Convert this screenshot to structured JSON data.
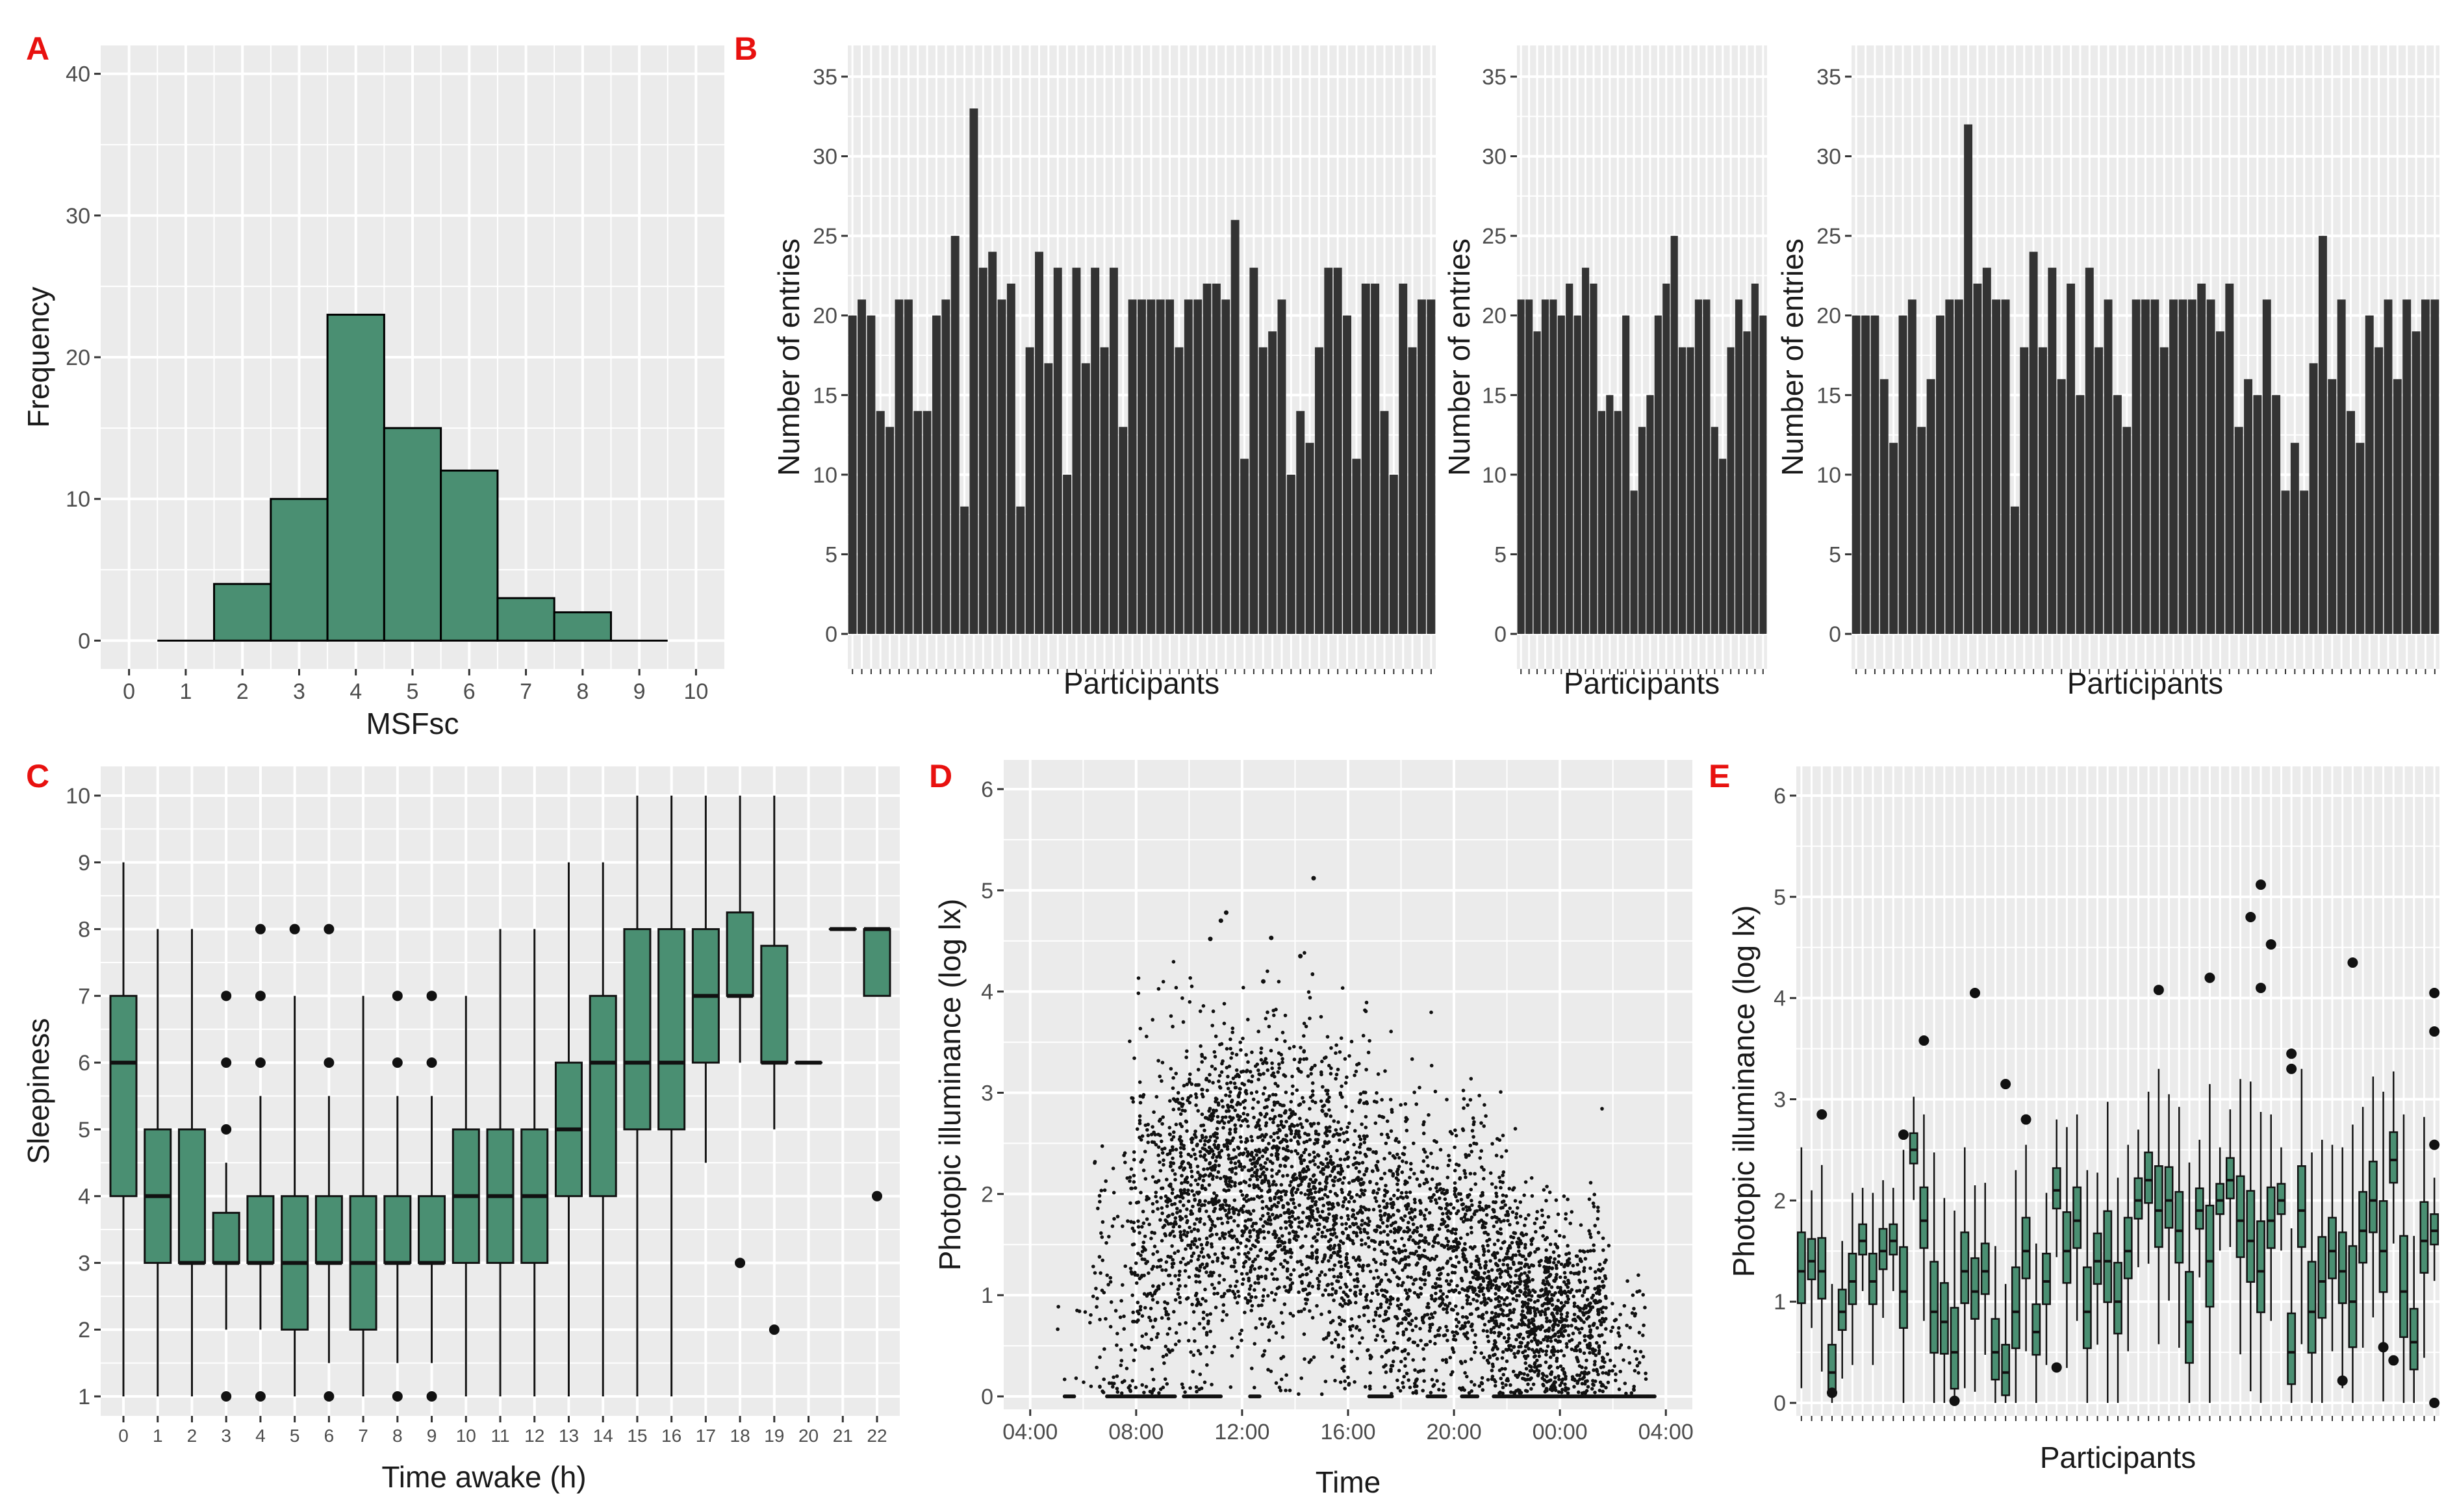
{
  "chart_data": [
    {
      "panel": "A",
      "type": "bar",
      "panel_label": "A",
      "xlabel": "MSFsc",
      "ylabel": "Frequency",
      "xticks": [
        "0",
        "1",
        "2",
        "3",
        "4",
        "5",
        "6",
        "7",
        "8",
        "9",
        "10"
      ],
      "yticks": [
        "0",
        "10",
        "20",
        "30",
        "40"
      ],
      "xlim": [
        -0.5,
        10.5
      ],
      "ylim": [
        -2,
        42
      ],
      "bin_centers": [
        1,
        2,
        3,
        4,
        5,
        6,
        7,
        8,
        9
      ],
      "values": [
        0,
        4,
        10,
        23,
        15,
        12,
        3,
        2,
        0
      ],
      "fill": "#4a8f72"
    },
    {
      "panel": "B",
      "type": "bar",
      "panel_label": "B",
      "fill": "#333333",
      "subplots": [
        {
          "xlabel": "Participants",
          "ylabel": "Number of entries",
          "yticks": [
            "0",
            "5",
            "10",
            "15",
            "20",
            "25",
            "30",
            "35"
          ],
          "ylim": [
            0,
            36.5
          ],
          "values": [
            20,
            21,
            20,
            14,
            13,
            21,
            21,
            14,
            14,
            20,
            21,
            25,
            8,
            33,
            23,
            24,
            21,
            22,
            8,
            18,
            24,
            17,
            23,
            10,
            23,
            17,
            23,
            18,
            23,
            13,
            21,
            21,
            21,
            21,
            21,
            18,
            21,
            21,
            22,
            22,
            21,
            26,
            11,
            23,
            18,
            19,
            21,
            10,
            14,
            12,
            18,
            23,
            23,
            20,
            11,
            22,
            22,
            14,
            10,
            22,
            18,
            21,
            21
          ]
        },
        {
          "xlabel": "Participants",
          "ylabel": "Number of entries",
          "yticks": [
            "0",
            "5",
            "10",
            "15",
            "20",
            "25",
            "30",
            "35"
          ],
          "ylim": [
            0,
            36.5
          ],
          "values": [
            21,
            21,
            19,
            21,
            21,
            20,
            22,
            20,
            23,
            22,
            14,
            15,
            14,
            20,
            9,
            13,
            15,
            20,
            22,
            25,
            18,
            18,
            21,
            21,
            13,
            11,
            18,
            21,
            19,
            22,
            20
          ]
        },
        {
          "xlabel": "Participants",
          "ylabel": "Number of entries",
          "yticks": [
            "0",
            "5",
            "10",
            "15",
            "20",
            "25",
            "30",
            "35"
          ],
          "ylim": [
            0,
            36.5
          ],
          "values": [
            20,
            20,
            20,
            16,
            12,
            20,
            21,
            13,
            16,
            20,
            21,
            21,
            32,
            22,
            23,
            21,
            21,
            8,
            18,
            24,
            18,
            23,
            16,
            22,
            15,
            23,
            18,
            21,
            15,
            13,
            21,
            21,
            21,
            18,
            21,
            21,
            21,
            22,
            21,
            19,
            22,
            13,
            16,
            15,
            21,
            15,
            9,
            12,
            9,
            17,
            25,
            16,
            21,
            14,
            12,
            20,
            18,
            21,
            16,
            21,
            19,
            21,
            21
          ]
        }
      ]
    },
    {
      "panel": "C",
      "type": "box",
      "panel_label": "C",
      "xlabel": "Time awake (h)",
      "ylabel": "Sleepiness",
      "xticks": [
        "0",
        "1",
        "2",
        "3",
        "4",
        "5",
        "6",
        "7",
        "8",
        "9",
        "10",
        "11",
        "12",
        "13",
        "14",
        "15",
        "16",
        "17",
        "18",
        "19",
        "20",
        "21",
        "22"
      ],
      "yticks": [
        "1",
        "2",
        "3",
        "4",
        "5",
        "6",
        "7",
        "8",
        "9",
        "10"
      ],
      "ylim": [
        0.6,
        10.4
      ],
      "fill": "#4a8f72",
      "boxes": [
        {
          "x": 0,
          "q1": 4,
          "med": 6,
          "q3": 7,
          "lo": 1,
          "hi": 9,
          "out": []
        },
        {
          "x": 1,
          "q1": 3,
          "med": 4,
          "q3": 5,
          "lo": 1,
          "hi": 8,
          "out": []
        },
        {
          "x": 2,
          "q1": 3,
          "med": 3,
          "q3": 5,
          "lo": 1,
          "hi": 8,
          "out": []
        },
        {
          "x": 3,
          "q1": 3,
          "med": 3,
          "q3": 3.75,
          "lo": 2,
          "hi": 4.5,
          "out": [
            1,
            5,
            6,
            7
          ]
        },
        {
          "x": 4,
          "q1": 3,
          "med": 3,
          "q3": 4,
          "lo": 2,
          "hi": 5.5,
          "out": [
            1,
            6,
            7,
            8
          ]
        },
        {
          "x": 5,
          "q1": 2,
          "med": 3,
          "q3": 4,
          "lo": 1,
          "hi": 7,
          "out": [
            8
          ]
        },
        {
          "x": 6,
          "q1": 3,
          "med": 3,
          "q3": 4,
          "lo": 1.5,
          "hi": 5.5,
          "out": [
            1,
            6,
            8
          ]
        },
        {
          "x": 7,
          "q1": 2,
          "med": 3,
          "q3": 4,
          "lo": 1,
          "hi": 7,
          "out": []
        },
        {
          "x": 8,
          "q1": 3,
          "med": 3,
          "q3": 4,
          "lo": 1.5,
          "hi": 5.5,
          "out": [
            1,
            6,
            7
          ]
        },
        {
          "x": 9,
          "q1": 3,
          "med": 3,
          "q3": 4,
          "lo": 1.5,
          "hi": 5.5,
          "out": [
            1,
            6,
            7
          ]
        },
        {
          "x": 10,
          "q1": 3,
          "med": 4,
          "q3": 5,
          "lo": 1,
          "hi": 7,
          "out": []
        },
        {
          "x": 11,
          "q1": 3,
          "med": 4,
          "q3": 5,
          "lo": 1,
          "hi": 8,
          "out": []
        },
        {
          "x": 12,
          "q1": 3,
          "med": 4,
          "q3": 5,
          "lo": 1,
          "hi": 8,
          "out": []
        },
        {
          "x": 13,
          "q1": 4,
          "med": 5,
          "q3": 6,
          "lo": 1,
          "hi": 9,
          "out": []
        },
        {
          "x": 14,
          "q1": 4,
          "med": 6,
          "q3": 7,
          "lo": 1,
          "hi": 9,
          "out": []
        },
        {
          "x": 15,
          "q1": 5,
          "med": 6,
          "q3": 8,
          "lo": 1,
          "hi": 10,
          "out": []
        },
        {
          "x": 16,
          "q1": 5,
          "med": 6,
          "q3": 8,
          "lo": 1,
          "hi": 10,
          "out": []
        },
        {
          "x": 17,
          "q1": 6,
          "med": 7,
          "q3": 8,
          "lo": 4.5,
          "hi": 10,
          "out": []
        },
        {
          "x": 18,
          "q1": 7,
          "med": 7,
          "q3": 8.25,
          "lo": 6,
          "hi": 10,
          "out": [
            3
          ]
        },
        {
          "x": 19,
          "q1": 6,
          "med": 6,
          "q3": 7.75,
          "lo": 5,
          "hi": 10,
          "out": [
            2
          ]
        },
        {
          "x": 20,
          "q1": 6,
          "med": 6,
          "q3": 6,
          "lo": 6,
          "hi": 6,
          "out": []
        },
        {
          "x": 21,
          "q1": 8,
          "med": 8,
          "q3": 8,
          "lo": 8,
          "hi": 8,
          "out": []
        },
        {
          "x": 22,
          "q1": 7,
          "med": 8,
          "q3": 8,
          "lo": 7,
          "hi": 8,
          "out": [
            4
          ]
        }
      ]
    },
    {
      "panel": "D",
      "type": "scatter",
      "panel_label": "D",
      "xlabel": "Time",
      "ylabel": "Photopic illuminance (log lx)",
      "xticks": [
        "04:00",
        "08:00",
        "12:00",
        "16:00",
        "20:00",
        "00:00",
        "04:00"
      ],
      "x_tick_hours": [
        4,
        8,
        12,
        16,
        20,
        24,
        28
      ],
      "xlim": [
        3,
        29
      ],
      "yticks": [
        "0",
        "1",
        "2",
        "3",
        "4",
        "5",
        "6"
      ],
      "ylim": [
        -0.3,
        6.2
      ],
      "density_profile": [
        {
          "hour": 5.5,
          "mean": 0.6,
          "sd": 0.6,
          "n": 8
        },
        {
          "hour": 7,
          "mean": 1.0,
          "sd": 0.9,
          "n": 80
        },
        {
          "hour": 8.5,
          "mean": 1.6,
          "sd": 0.9,
          "n": 250
        },
        {
          "hour": 10,
          "mean": 1.9,
          "sd": 0.8,
          "n": 380
        },
        {
          "hour": 11.5,
          "mean": 2.1,
          "sd": 0.8,
          "n": 420
        },
        {
          "hour": 13,
          "mean": 2.0,
          "sd": 0.8,
          "n": 430
        },
        {
          "hour": 14.5,
          "mean": 2.0,
          "sd": 0.8,
          "n": 400
        },
        {
          "hour": 16,
          "mean": 1.8,
          "sd": 0.8,
          "n": 380
        },
        {
          "hour": 17.5,
          "mean": 1.5,
          "sd": 0.8,
          "n": 330
        },
        {
          "hour": 19,
          "mean": 1.3,
          "sd": 0.7,
          "n": 300
        },
        {
          "hour": 20.5,
          "mean": 1.4,
          "sd": 0.7,
          "n": 330
        },
        {
          "hour": 22,
          "mean": 1.1,
          "sd": 0.6,
          "n": 380
        },
        {
          "hour": 23.5,
          "mean": 0.8,
          "sd": 0.5,
          "n": 420
        },
        {
          "hour": 25,
          "mean": 0.7,
          "sd": 0.5,
          "n": 280
        },
        {
          "hour": 26.5,
          "mean": 0.5,
          "sd": 0.4,
          "n": 60
        }
      ],
      "notable_points": [
        {
          "hour": 14.7,
          "y": 5.12
        },
        {
          "hour": 11.4,
          "y": 4.78
        },
        {
          "hour": 11.2,
          "y": 4.7
        },
        {
          "hour": 10.8,
          "y": 4.52
        },
        {
          "hour": 13.1,
          "y": 4.53
        },
        {
          "hour": 14.2,
          "y": 4.35
        },
        {
          "hour": 12.8,
          "y": 4.1
        }
      ],
      "zero_runs": [
        {
          "from": 5.3,
          "to": 5.7
        },
        {
          "from": 6.9,
          "to": 9.5
        },
        {
          "from": 9.8,
          "to": 11.2
        },
        {
          "from": 12.3,
          "to": 12.7
        },
        {
          "from": 16.8,
          "to": 17.7
        },
        {
          "from": 19.0,
          "to": 19.7
        },
        {
          "from": 20.3,
          "to": 20.9
        },
        {
          "from": 21.5,
          "to": 27.6
        }
      ],
      "point_color": "#111111"
    },
    {
      "panel": "E",
      "type": "box",
      "panel_label": "E",
      "xlabel": "Participants",
      "ylabel": "Photopic illuminance (log lx)",
      "yticks": [
        "0",
        "1",
        "2",
        "3",
        "4",
        "5",
        "6"
      ],
      "ylim": [
        -0.2,
        6.3
      ],
      "fill": "#4a8f72",
      "participant_count": 63,
      "medians": [
        1.3,
        1.4,
        1.3,
        0.3,
        0.9,
        1.2,
        1.6,
        1.2,
        1.5,
        1.6,
        1.1,
        2.5,
        1.8,
        0.9,
        0.8,
        0.5,
        1.3,
        1.1,
        1.3,
        0.5,
        0.3,
        0.9,
        1.5,
        0.7,
        1.2,
        2.1,
        1.5,
        1.8,
        0.9,
        1.4,
        1.4,
        1.0,
        1.5,
        2.0,
        2.2,
        1.9,
        2.0,
        1.7,
        0.8,
        1.9,
        1.4,
        2.0,
        2.2,
        1.8,
        1.6,
        1.3,
        1.8,
        2.0,
        0.5,
        1.9,
        0.9,
        1.2,
        1.5,
        1.3,
        1.0,
        1.7,
        2.0,
        1.5,
        2.4,
        1.1,
        0.6,
        1.6,
        1.7
      ],
      "iqr": [
        0.7,
        0.4,
        0.6,
        0.5,
        0.4,
        0.5,
        0.3,
        0.5,
        0.4,
        0.3,
        0.8,
        0.3,
        0.6,
        0.9,
        0.7,
        0.8,
        0.7,
        0.6,
        0.5,
        0.6,
        0.5,
        0.8,
        0.6,
        0.5,
        0.5,
        0.4,
        0.7,
        0.6,
        0.8,
        0.5,
        0.9,
        0.7,
        0.6,
        0.4,
        0.5,
        0.8,
        0.6,
        0.7,
        0.9,
        0.4,
        1.0,
        0.3,
        0.4,
        0.8,
        0.9,
        0.9,
        0.6,
        0.3,
        0.7,
        0.8,
        0.9,
        0.8,
        0.6,
        0.7,
        1.0,
        0.7,
        0.7,
        0.9,
        0.5,
        1.0,
        0.6,
        0.7,
        0.3
      ],
      "outliers": [
        {
          "i": 2,
          "y": 2.85
        },
        {
          "i": 10,
          "y": 2.65
        },
        {
          "i": 12,
          "y": 3.58
        },
        {
          "i": 17,
          "y": 4.05
        },
        {
          "i": 20,
          "y": 3.15
        },
        {
          "i": 22,
          "y": 2.8
        },
        {
          "i": 35,
          "y": 4.08
        },
        {
          "i": 40,
          "y": 4.2
        },
        {
          "i": 44,
          "y": 4.8
        },
        {
          "i": 45,
          "y": 5.12
        },
        {
          "i": 46,
          "y": 4.53
        },
        {
          "i": 45,
          "y": 4.1
        },
        {
          "i": 48,
          "y": 3.45
        },
        {
          "i": 48,
          "y": 3.3
        },
        {
          "i": 54,
          "y": 4.35
        },
        {
          "i": 62,
          "y": 4.05
        },
        {
          "i": 62,
          "y": 3.67
        },
        {
          "i": 62,
          "y": 2.55
        },
        {
          "i": 62,
          "y": 0.0
        },
        {
          "i": 57,
          "y": 0.55
        },
        {
          "i": 58,
          "y": 0.42
        },
        {
          "i": 3,
          "y": 0.1
        },
        {
          "i": 15,
          "y": 0.02
        },
        {
          "i": 25,
          "y": 0.35
        },
        {
          "i": 53,
          "y": 0.22
        }
      ]
    }
  ]
}
